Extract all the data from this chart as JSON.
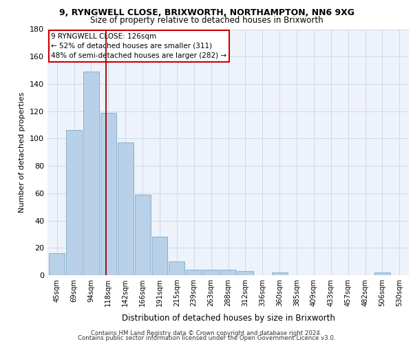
{
  "title1": "9, RYNGWELL CLOSE, BRIXWORTH, NORTHAMPTON, NN6 9XG",
  "title2": "Size of property relative to detached houses in Brixworth",
  "xlabel": "Distribution of detached houses by size in Brixworth",
  "ylabel": "Number of detached properties",
  "bar_color": "#b8d0e8",
  "bar_edge_color": "#7aaac8",
  "categories": [
    "45sqm",
    "69sqm",
    "94sqm",
    "118sqm",
    "142sqm",
    "166sqm",
    "191sqm",
    "215sqm",
    "239sqm",
    "263sqm",
    "288sqm",
    "312sqm",
    "336sqm",
    "360sqm",
    "385sqm",
    "409sqm",
    "433sqm",
    "457sqm",
    "482sqm",
    "506sqm",
    "530sqm"
  ],
  "values": [
    16,
    106,
    149,
    119,
    97,
    59,
    28,
    10,
    4,
    4,
    4,
    3,
    0,
    2,
    0,
    0,
    0,
    0,
    0,
    2,
    0
  ],
  "ylim": [
    0,
    180
  ],
  "yticks": [
    0,
    20,
    40,
    60,
    80,
    100,
    120,
    140,
    160,
    180
  ],
  "vline_x": 2.85,
  "vline_color": "#990000",
  "annotation_text": "9 RYNGWELL CLOSE: 126sqm\n← 52% of detached houses are smaller (311)\n48% of semi-detached houses are larger (282) →",
  "annotation_box_color": "#ffffff",
  "annotation_box_edge": "#cc0000",
  "footer1": "Contains HM Land Registry data © Crown copyright and database right 2024.",
  "footer2": "Contains public sector information licensed under the Open Government Licence v3.0.",
  "grid_color": "#d0d8e8",
  "bg_color": "#eef2fa"
}
